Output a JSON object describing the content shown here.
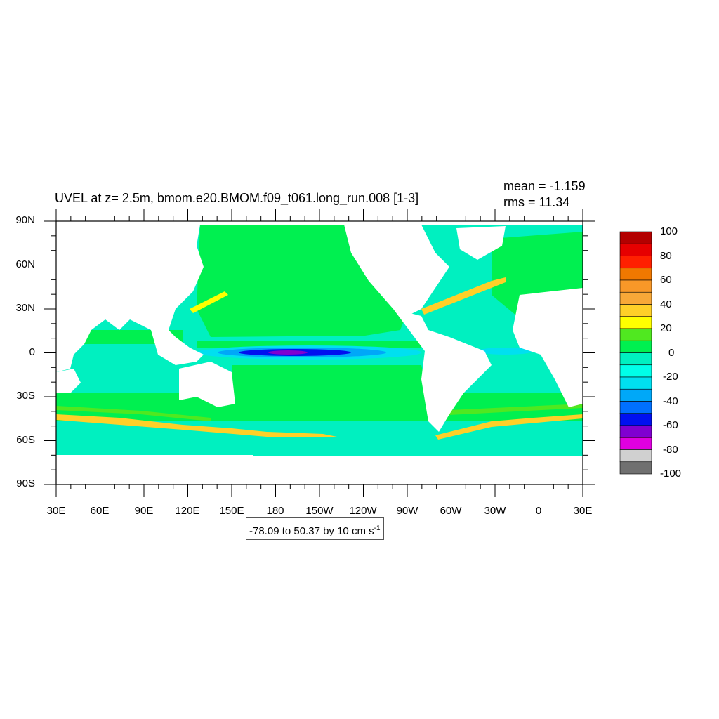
{
  "title": "UVEL at z=   2.5m, bmom.e20.BMOM.f09_t061.long_run.008 [1-3]",
  "stats": {
    "mean": "mean = -1.159",
    "rms": "rms = 11.34"
  },
  "range_label": {
    "text": "-78.09 to 50.37 by 10 cm s",
    "sup": "-1"
  },
  "map": {
    "projection": "cylindrical-equidistant",
    "lon_range": [
      "30E",
      "30E"
    ],
    "lat_range": [
      "90S",
      "90N"
    ],
    "lat_labels": [
      "90N",
      "60N",
      "30N",
      "0",
      "30S",
      "60S",
      "90S"
    ],
    "lon_labels": [
      "30E",
      "60E",
      "90E",
      "120E",
      "150E",
      "180",
      "150W",
      "120W",
      "90W",
      "60W",
      "30W",
      "0",
      "30E"
    ],
    "ocean_base_color": "#00f0c0",
    "land_color": "#ffffff"
  },
  "colorbar": {
    "labels": [
      "100",
      "80",
      "60",
      "40",
      "20",
      "0",
      "-20",
      "-40",
      "-60",
      "-80",
      "-100"
    ],
    "colors": [
      "#b30000",
      "#e60000",
      "#ff2000",
      "#f07800",
      "#f89828",
      "#f8a838",
      "#ffd028",
      "#ffff00",
      "#50e820",
      "#00f050",
      "#00f0c0",
      "#00ffe8",
      "#00e0f0",
      "#00a8f8",
      "#0070ff",
      "#0010f0",
      "#8000d0",
      "#e000e0",
      "#d0d0d0",
      "#707070"
    ]
  }
}
